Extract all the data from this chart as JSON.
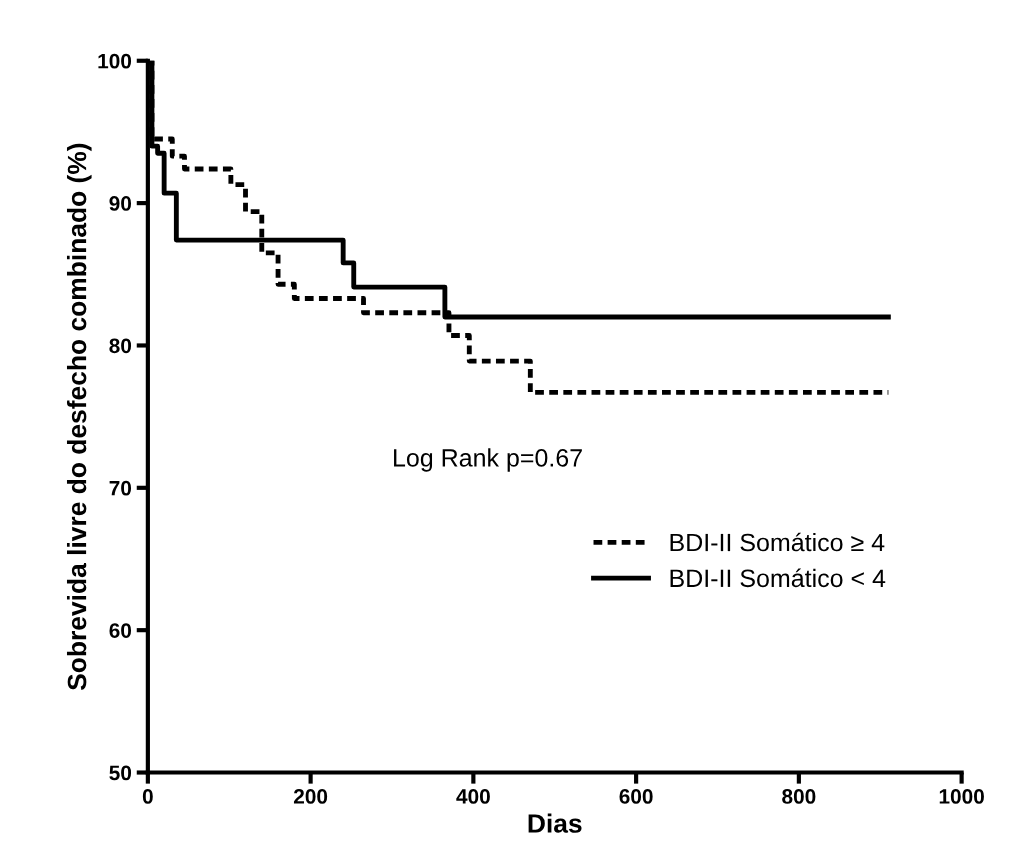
{
  "chart_data": {
    "type": "step",
    "xlabel": "Dias",
    "ylabel": "Sobrevida livre do desfecho combinado (%)",
    "xlim": [
      0,
      1000
    ],
    "ylim": [
      50,
      100
    ],
    "xticks": [
      0,
      200,
      400,
      600,
      800,
      1000
    ],
    "yticks": [
      50,
      60,
      70,
      80,
      90,
      100
    ],
    "legend": "center right",
    "grid": false,
    "marker": "none",
    "annotations": [
      "Log Rank p=0.67"
    ],
    "series": [
      {
        "name": "BDI-II Somático ≥ 4",
        "color": "#000000",
        "line_style": "dashed",
        "x": [
          0,
          5,
          30,
          45,
          102,
          120,
          140,
          160,
          180,
          265,
          370,
          395,
          470,
          910
        ],
        "values": [
          100,
          94.5,
          93.3,
          92.4,
          91.3,
          89.4,
          86.5,
          84.3,
          83.3,
          82.3,
          80.7,
          78.9,
          76.7,
          76.7
        ]
      },
      {
        "name": "BDI-II Somático < 4",
        "color": "#000000",
        "line_style": "solid",
        "x": [
          0,
          5,
          12,
          20,
          35,
          240,
          253,
          365,
          910
        ],
        "values": [
          100,
          94,
          93.5,
          90.7,
          87.4,
          85.8,
          84.1,
          82.0,
          82.0
        ]
      }
    ]
  }
}
